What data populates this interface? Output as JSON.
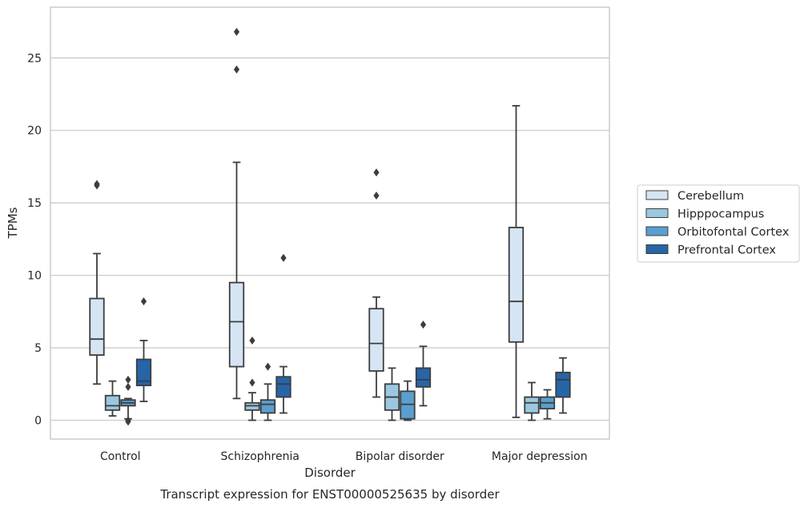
{
  "chart_data": {
    "type": "box",
    "caption": "Transcript expression for ENST00000525635 by disorder",
    "xlabel": "Disorder",
    "ylabel": "TPMs",
    "ylim": [
      -1.3,
      28.5
    ],
    "yticks": [
      0,
      5,
      10,
      15,
      20,
      25
    ],
    "grid": "horizontal",
    "legend_position": "right",
    "categories": [
      "Control",
      "Schizophrenia",
      "Bipolar disorder",
      "Major depression"
    ],
    "series": [
      {
        "name": "Cerebellum",
        "color": "#d6e5f4",
        "boxes": [
          {
            "whisker_low": 2.5,
            "q1": 4.5,
            "median": 5.6,
            "q3": 8.4,
            "whisker_high": 11.5,
            "outliers": [
              16.3,
              16.2
            ]
          },
          {
            "whisker_low": 1.5,
            "q1": 3.7,
            "median": 6.8,
            "q3": 9.5,
            "whisker_high": 17.8,
            "outliers": [
              24.2,
              26.8
            ]
          },
          {
            "whisker_low": 1.6,
            "q1": 3.4,
            "median": 5.3,
            "q3": 7.7,
            "whisker_high": 8.5,
            "outliers": [
              15.5,
              17.1
            ]
          },
          {
            "whisker_low": 0.2,
            "q1": 5.4,
            "median": 8.2,
            "q3": 13.3,
            "whisker_high": 21.7,
            "outliers": []
          }
        ]
      },
      {
        "name": "Hipppocampus",
        "color": "#9ac8e0",
        "boxes": [
          {
            "whisker_low": 0.3,
            "q1": 0.7,
            "median": 1.0,
            "q3": 1.7,
            "whisker_high": 2.7,
            "outliers": []
          },
          {
            "whisker_low": 0.0,
            "q1": 0.7,
            "median": 1.0,
            "q3": 1.2,
            "whisker_high": 1.9,
            "outliers": [
              2.6,
              5.5
            ]
          },
          {
            "whisker_low": 0.0,
            "q1": 0.7,
            "median": 1.6,
            "q3": 2.5,
            "whisker_high": 3.6,
            "outliers": []
          },
          {
            "whisker_low": 0.0,
            "q1": 0.5,
            "median": 1.2,
            "q3": 1.6,
            "whisker_high": 2.6,
            "outliers": []
          }
        ]
      },
      {
        "name": "Orbitofontal Cortex",
        "color": "#5a9fcf",
        "boxes": [
          {
            "whisker_low": 0.1,
            "q1": 1.0,
            "median": 1.2,
            "q3": 1.4,
            "whisker_high": 1.5,
            "outliers": [
              0.0,
              -0.1,
              2.3,
              2.8
            ]
          },
          {
            "whisker_low": 0.0,
            "q1": 0.5,
            "median": 1.1,
            "q3": 1.4,
            "whisker_high": 2.5,
            "outliers": [
              3.7
            ]
          },
          {
            "whisker_low": 0.0,
            "q1": 0.1,
            "median": 1.1,
            "q3": 2.0,
            "whisker_high": 2.7,
            "outliers": []
          },
          {
            "whisker_low": 0.1,
            "q1": 0.8,
            "median": 1.2,
            "q3": 1.6,
            "whisker_high": 2.1,
            "outliers": []
          }
        ]
      },
      {
        "name": "Prefrontal Cortex",
        "color": "#2565a8",
        "boxes": [
          {
            "whisker_low": 1.3,
            "q1": 2.4,
            "median": 2.7,
            "q3": 4.2,
            "whisker_high": 5.5,
            "outliers": [
              8.2
            ]
          },
          {
            "whisker_low": 0.5,
            "q1": 1.6,
            "median": 2.5,
            "q3": 3.0,
            "whisker_high": 3.7,
            "outliers": [
              11.2
            ]
          },
          {
            "whisker_low": 1.0,
            "q1": 2.3,
            "median": 2.8,
            "q3": 3.6,
            "whisker_high": 5.1,
            "outliers": [
              6.6
            ]
          },
          {
            "whisker_low": 0.5,
            "q1": 1.6,
            "median": 2.8,
            "q3": 3.3,
            "whisker_high": 4.3,
            "outliers": []
          }
        ]
      }
    ]
  }
}
